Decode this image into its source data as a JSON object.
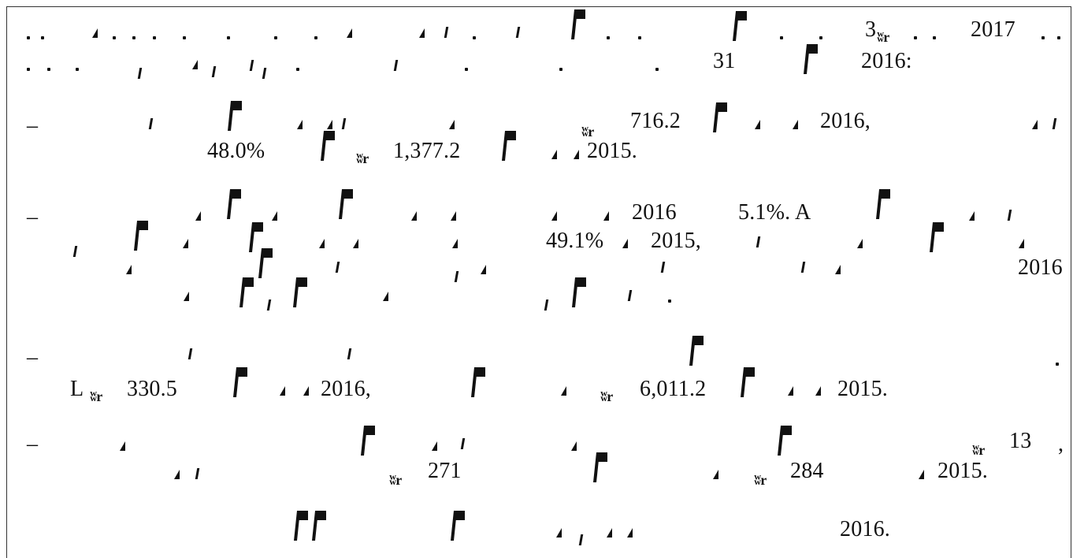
{
  "text": {
    "l1_3": "3",
    "l1_2017": "2017",
    "l2_31": "31",
    "l2_2016": "2016:",
    "b1_716": "716.2",
    "b1_2016": "2016,",
    "b1_48": "48.0%",
    "b1_1377": "1,377.2",
    "b1_2015": "2015.",
    "b2_2016": "2016",
    "b2_51": "5.1%. A",
    "b2_491": "49.1%",
    "b2_2015": "2015,",
    "b2_2016b": "2016",
    "b3_L": "L",
    "b3_3305": "330.5",
    "b3_2016": "2016,",
    "b3_6011": "6,011.2",
    "b3_2015": "2015.",
    "b4_13": "13",
    "b4_comma": ",",
    "b4_271": "271",
    "b4_284": "284",
    "b4_2015": "2015.",
    "last_2016": "2016.",
    "dash": "–"
  }
}
